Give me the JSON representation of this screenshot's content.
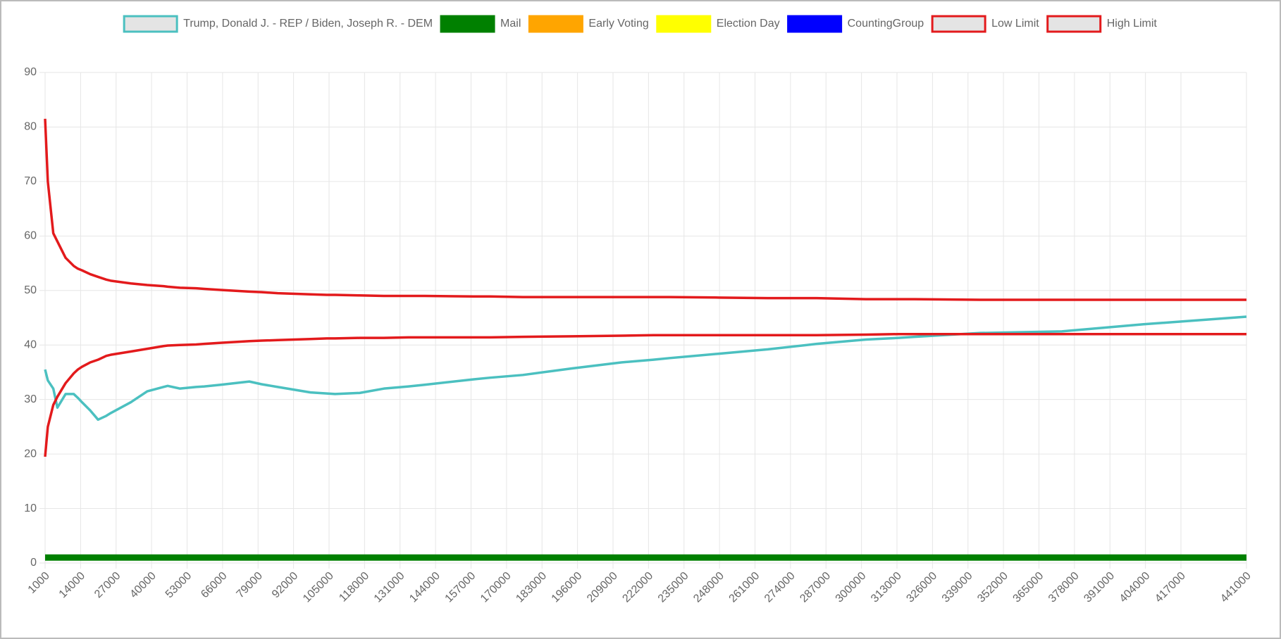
{
  "chart_data": {
    "type": "line",
    "x": [
      1000,
      2000,
      4000,
      5500,
      8500,
      11500,
      13000,
      14500,
      17500,
      20400,
      23400,
      25000,
      32400,
      38400,
      44400,
      45900,
      50400,
      56300,
      59300,
      65300,
      75800,
      80300,
      86200,
      98200,
      104200,
      107200,
      116200,
      125100,
      134100,
      140000,
      158000,
      164000,
      176000,
      194000,
      212000,
      223800,
      229800,
      247800,
      265700,
      283600,
      301600,
      313600,
      319500,
      343500,
      373400,
      403300,
      441000
    ],
    "series": [
      {
        "name": "Trump, Donald J. - REP / Biden, Joseph R. - DEM",
        "color": "#4bc0c0",
        "fill": "#e4e4e4",
        "values": [
          35.5,
          33.5,
          32,
          28.5,
          31,
          31,
          30.3,
          29.5,
          28,
          26.3,
          27,
          27.5,
          29.5,
          31.5,
          32.3,
          32.5,
          32,
          32.3,
          32.4,
          32.7,
          33.3,
          32.8,
          32.3,
          31.3,
          31.1,
          31,
          31.2,
          32,
          32.4,
          32.7,
          33.7,
          34,
          34.5,
          35.7,
          36.8,
          37.3,
          37.6,
          38.4,
          39.2,
          40.2,
          41,
          41.3,
          41.5,
          42.2,
          42.5,
          43.8,
          45.2
        ]
      },
      {
        "name": "Mail",
        "color": "#008000",
        "fill": "#008000",
        "values": [
          1,
          1,
          1,
          1,
          1,
          1,
          1,
          1,
          1,
          1,
          1,
          1,
          1,
          1,
          1,
          1,
          1,
          1,
          1,
          1,
          1,
          1,
          1,
          1,
          1,
          1,
          1,
          1,
          1,
          1,
          1,
          1,
          1,
          1,
          1,
          1,
          1,
          1,
          1,
          1,
          1,
          1,
          1,
          1,
          1,
          1,
          1
        ]
      },
      {
        "name": "Early Voting",
        "color": "#ffa500",
        "fill": "#ffa500",
        "values": [
          null,
          null,
          null,
          null,
          null,
          null,
          null,
          null,
          null,
          null,
          null,
          null,
          null,
          null,
          null,
          null,
          null,
          null,
          null,
          null,
          null,
          null,
          null,
          null,
          null,
          null,
          null,
          null,
          null,
          null,
          null,
          null,
          null,
          null,
          null,
          null,
          null,
          null,
          null,
          null,
          null,
          null,
          null,
          null,
          null,
          null,
          null
        ]
      },
      {
        "name": "Election Day",
        "color": "#ffff00",
        "fill": "#ffff00",
        "values": [
          null,
          null,
          null,
          null,
          null,
          null,
          null,
          null,
          null,
          null,
          null,
          null,
          null,
          null,
          null,
          null,
          null,
          null,
          null,
          null,
          null,
          null,
          null,
          null,
          null,
          null,
          null,
          null,
          null,
          null,
          null,
          null,
          null,
          null,
          null,
          null,
          null,
          null,
          null,
          null,
          null,
          null,
          null,
          null,
          null,
          null,
          null
        ]
      },
      {
        "name": "CountingGroup",
        "color": "#0000ff",
        "fill": "#0000ff",
        "values": [
          null,
          null,
          null,
          null,
          null,
          null,
          null,
          null,
          null,
          null,
          null,
          null,
          null,
          null,
          null,
          null,
          null,
          null,
          null,
          null,
          null,
          null,
          null,
          null,
          null,
          null,
          null,
          null,
          null,
          null,
          null,
          null,
          null,
          null,
          null,
          null,
          null,
          null,
          null,
          null,
          null,
          null,
          null,
          null,
          null,
          null,
          null
        ]
      },
      {
        "name": "Low Limit",
        "color": "#e31a1c",
        "fill": "#e4e4e4",
        "values": [
          19.5,
          25,
          29,
          30.5,
          33,
          34.8,
          35.5,
          36,
          36.8,
          37.3,
          38,
          38.2,
          38.8,
          39.3,
          39.8,
          39.9,
          40,
          40.1,
          40.2,
          40.4,
          40.7,
          40.8,
          40.9,
          41.1,
          41.2,
          41.2,
          41.3,
          41.3,
          41.4,
          41.4,
          41.4,
          41.4,
          41.5,
          41.6,
          41.7,
          41.8,
          41.8,
          41.8,
          41.8,
          41.8,
          41.9,
          42,
          42,
          42,
          42,
          42,
          42
        ]
      },
      {
        "name": "High Limit",
        "color": "#e31a1c",
        "fill": "#e4e4e4",
        "values": [
          81.5,
          70,
          60.5,
          59,
          56,
          54.5,
          54,
          53.7,
          53,
          52.5,
          52,
          51.8,
          51.3,
          51,
          50.8,
          50.7,
          50.5,
          50.4,
          50.3,
          50.1,
          49.8,
          49.7,
          49.5,
          49.3,
          49.2,
          49.2,
          49.1,
          49,
          49,
          49,
          48.9,
          48.9,
          48.8,
          48.8,
          48.8,
          48.8,
          48.8,
          48.7,
          48.6,
          48.6,
          48.4,
          48.4,
          48.4,
          48.3,
          48.3,
          48.3,
          48.3
        ]
      }
    ],
    "xlim": [
      1000,
      441000
    ],
    "xticks": [
      1000,
      14000,
      27000,
      40000,
      53000,
      66000,
      79000,
      92000,
      105000,
      118000,
      131000,
      144000,
      157000,
      170000,
      183000,
      196000,
      209000,
      222000,
      235000,
      248000,
      261000,
      274000,
      287000,
      300000,
      313000,
      326000,
      339000,
      352000,
      365000,
      378000,
      391000,
      404000,
      417000,
      441000
    ],
    "ylim": [
      0,
      90
    ],
    "yticks": [
      0,
      10,
      20,
      30,
      40,
      50,
      60,
      70,
      80,
      90
    ],
    "grid": true,
    "legend": "top"
  }
}
